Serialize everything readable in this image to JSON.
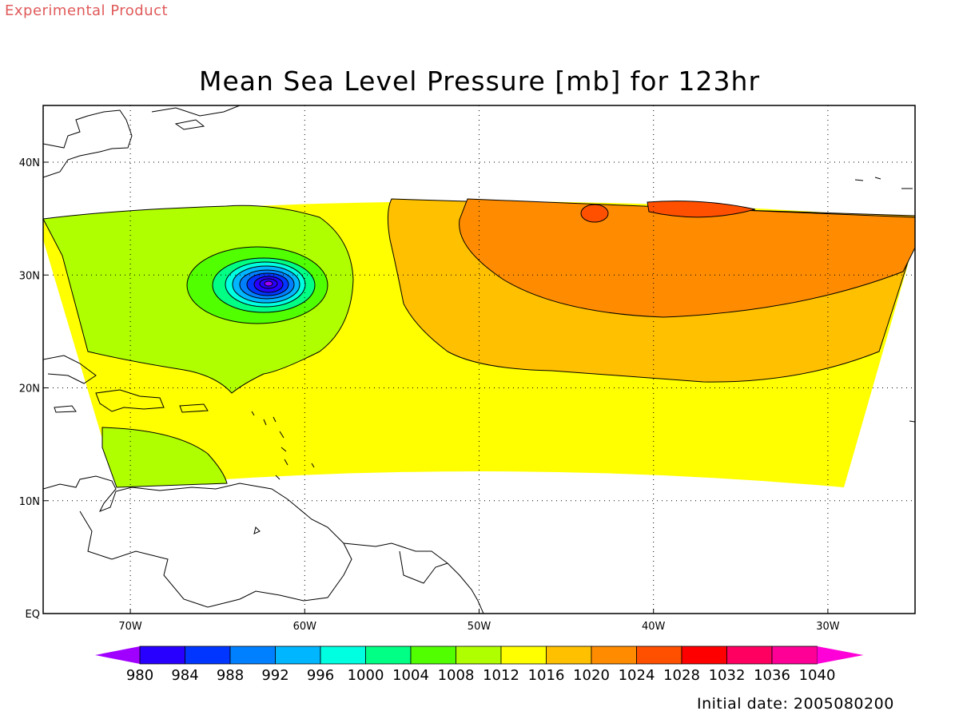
{
  "header": {
    "experimental_label": "Experimental Product",
    "title": "Mean Sea Level Pressure [mb] for 123hr"
  },
  "footer": {
    "initial_date": "Initial date: 2005080200"
  },
  "axes": {
    "lon_ticks": [
      {
        "lon": -70,
        "label": "70W"
      },
      {
        "lon": -60,
        "label": "60W"
      },
      {
        "lon": -50,
        "label": "50W"
      },
      {
        "lon": -40,
        "label": "40W"
      },
      {
        "lon": -30,
        "label": "30W"
      }
    ],
    "lat_ticks": [
      {
        "lat": 0,
        "label": "EQ"
      },
      {
        "lat": 10,
        "label": "10N"
      },
      {
        "lat": 20,
        "label": "20N"
      },
      {
        "lat": 30,
        "label": "30N"
      },
      {
        "lat": 40,
        "label": "40N"
      }
    ],
    "lon_range": [
      -75,
      -25
    ],
    "lat_range": [
      -2,
      45
    ],
    "grid": "dotted"
  },
  "colorbar": {
    "levels": [
      "980",
      "984",
      "988",
      "992",
      "996",
      "1000",
      "1004",
      "1008",
      "1012",
      "1016",
      "1020",
      "1024",
      "1028",
      "1032",
      "1036",
      "1040"
    ],
    "colors": [
      "#a000ff",
      "#2800ff",
      "#0036ff",
      "#0080ff",
      "#00b6ff",
      "#00ffe0",
      "#00ff84",
      "#52ff00",
      "#b0ff00",
      "#ffff00",
      "#ffc000",
      "#ff8c00",
      "#ff5000",
      "#ff0000",
      "#ff0060",
      "#ff0096",
      "#ff00d8"
    ]
  },
  "features": {
    "low_center_label": "low-pressure-center"
  }
}
